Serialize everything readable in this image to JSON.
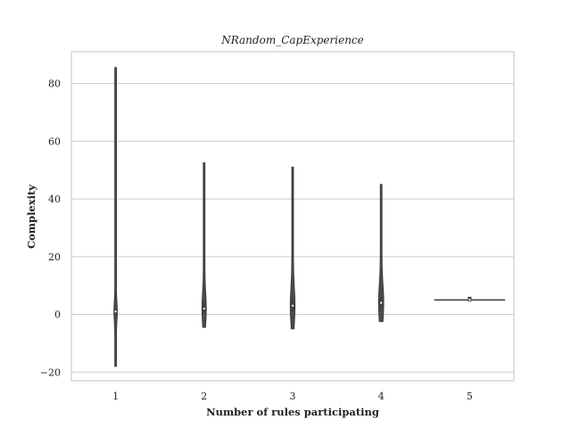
{
  "chart_data": {
    "type": "violin",
    "title": "NRandom_CapExperience",
    "xlabel": "Number of rules participating",
    "ylabel": "Complexity",
    "categories": [
      "1",
      "2",
      "3",
      "4",
      "5"
    ],
    "ylim": [
      -23,
      91
    ],
    "yticks": [
      -20,
      0,
      20,
      40,
      60,
      80
    ],
    "grid": "horizontal",
    "violins": [
      {
        "category": "1",
        "min": -18,
        "max": 85.5,
        "median": 1,
        "q1": 0,
        "q3": 2,
        "peak_halfwidth_rel": 0.02
      },
      {
        "category": "2",
        "min": -4.5,
        "max": 52.5,
        "median": 2,
        "q1": 0.5,
        "q3": 4,
        "peak_halfwidth_rel": 0.03
      },
      {
        "category": "3",
        "min": -5,
        "max": 51,
        "median": 3,
        "q1": 1,
        "q3": 5,
        "peak_halfwidth_rel": 0.035
      },
      {
        "category": "4",
        "min": -2.5,
        "max": 45,
        "median": 4,
        "q1": 2,
        "q3": 6,
        "peak_halfwidth_rel": 0.04
      },
      {
        "category": "5",
        "min": 4.7,
        "max": 5.3,
        "median": 5,
        "q1": 5,
        "q3": 5,
        "peak_halfwidth_rel": 0.8
      }
    ],
    "colors": {
      "violin": "#4c4c4c",
      "grid": "#cccccc",
      "frame": "#cccccc"
    }
  }
}
